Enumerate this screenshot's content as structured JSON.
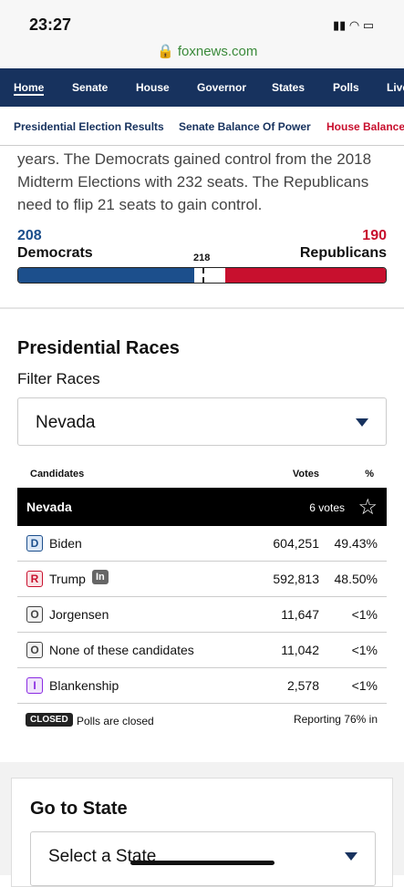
{
  "status": {
    "time": "23:27",
    "url": "foxnews.com"
  },
  "nav": [
    "Home",
    "Senate",
    "House",
    "Governor",
    "States",
    "Polls",
    "Live"
  ],
  "subnav": [
    "Presidential Election Results",
    "Senate Balance Of Power",
    "House Balance Of Power"
  ],
  "intro": "years. The Democrats gained control from the 2018 Midterm Elections with 232 seats. The Republicans need to flip 21 seats to gain control.",
  "balance": {
    "dem_seats": "208",
    "dem_label": "Democrats",
    "rep_seats": "190",
    "rep_label": "Republicans",
    "majority": "218"
  },
  "races": {
    "title": "Presidential Races",
    "filter_label": "Filter Races",
    "selected": "Nevada",
    "headers": [
      "Candidates",
      "Votes",
      "%"
    ],
    "state": "Nevada",
    "electoral": "6 votes",
    "rows": [
      {
        "party": "D",
        "name": "Biden",
        "votes": "604,251",
        "pct": "49.43%"
      },
      {
        "party": "R",
        "name": "Trump",
        "badge": "In",
        "votes": "592,813",
        "pct": "48.50%"
      },
      {
        "party": "O",
        "name": "Jorgensen",
        "votes": "11,647",
        "pct": "<1%"
      },
      {
        "party": "O",
        "name": "None of these candidates",
        "votes": "11,042",
        "pct": "<1%"
      },
      {
        "party": "I",
        "name": "Blankenship",
        "votes": "2,578",
        "pct": "<1%"
      }
    ],
    "closed_badge": "CLOSED",
    "closed_text": "Polls are closed",
    "reporting": "Reporting 76% in"
  },
  "go_to_state": {
    "title": "Go to State",
    "placeholder": "Select a State"
  }
}
